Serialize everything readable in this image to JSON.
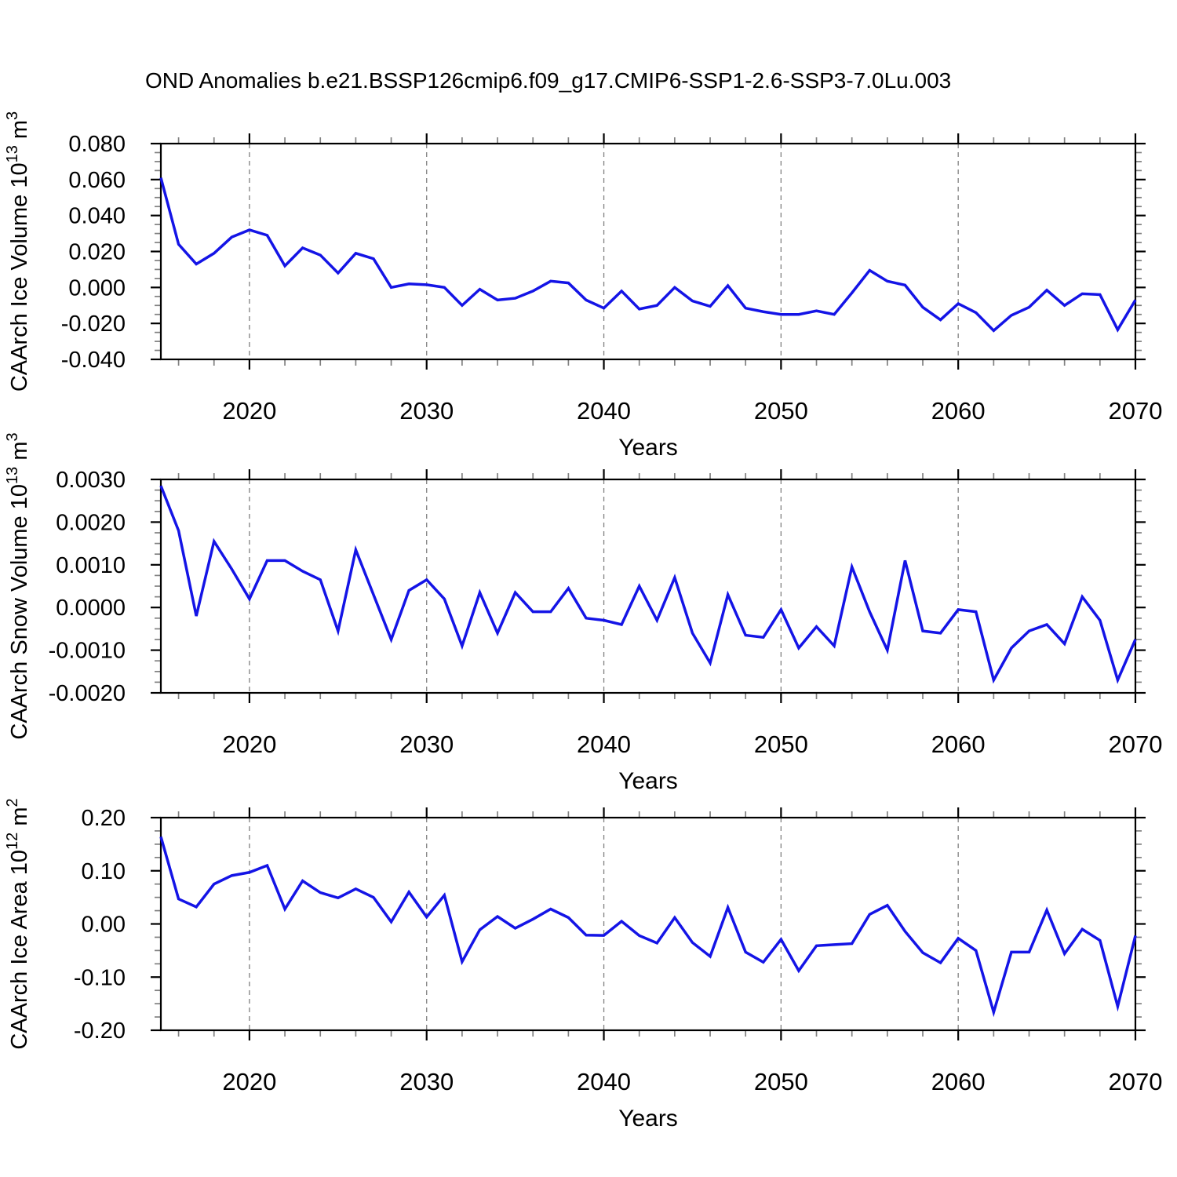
{
  "title": "OND Anomalies b.e21.BSSP126cmip6.f09_g17.CMIP6-SSP1-2.6-SSP3-7.0Lu.003",
  "colors": {
    "line": "#1414e6",
    "grid": "#808080",
    "frame": "#000000",
    "minor_tick": "#808080",
    "text": "#000000"
  },
  "years": [
    2015,
    2016,
    2017,
    2018,
    2019,
    2020,
    2021,
    2022,
    2023,
    2024,
    2025,
    2026,
    2027,
    2028,
    2029,
    2030,
    2031,
    2032,
    2033,
    2034,
    2035,
    2036,
    2037,
    2038,
    2039,
    2040,
    2041,
    2042,
    2043,
    2044,
    2045,
    2046,
    2047,
    2048,
    2049,
    2050,
    2051,
    2052,
    2053,
    2054,
    2055,
    2056,
    2057,
    2058,
    2059,
    2060,
    2061,
    2062,
    2063,
    2064,
    2065,
    2066,
    2067,
    2068,
    2069,
    2070
  ],
  "chart_data": [
    {
      "id": "ice-volume",
      "type": "line",
      "ylabel": {
        "base": "CAArch Ice Volume 10",
        "exp": "13",
        "unit": "m",
        "unit_exp": "3"
      },
      "xlabel": "Years",
      "xlim": [
        2015,
        2070
      ],
      "xticks": [
        2020,
        2030,
        2040,
        2050,
        2060,
        2070
      ],
      "x_minor_step": 2,
      "grid_x": [
        2020,
        2030,
        2040,
        2050,
        2060
      ],
      "ylim": [
        -0.04,
        0.08
      ],
      "ytick_step": 0.02,
      "y_minor_step": 0.005,
      "ytick_decimals": 3,
      "legend_position": "none",
      "grid": "x-dashed",
      "values": [
        0.061,
        0.024,
        0.013,
        0.019,
        0.028,
        0.032,
        0.029,
        0.012,
        0.022,
        0.018,
        0.008,
        0.019,
        0.016,
        0.0,
        0.002,
        0.0015,
        0.0,
        -0.01,
        -0.001,
        -0.007,
        -0.006,
        -0.002,
        0.0035,
        0.0025,
        -0.007,
        -0.0115,
        -0.002,
        -0.012,
        -0.01,
        0.0,
        -0.0075,
        -0.0105,
        0.001,
        -0.0115,
        -0.0135,
        -0.015,
        -0.015,
        -0.013,
        -0.015,
        -0.003,
        0.0095,
        0.0035,
        0.0013,
        -0.011,
        -0.018,
        -0.009,
        -0.014,
        -0.024,
        -0.0155,
        -0.011,
        -0.0015,
        -0.01,
        -0.0035,
        -0.004,
        -0.0235,
        -0.007
      ]
    },
    {
      "id": "snow-volume",
      "type": "line",
      "ylabel": {
        "base": "CAArch Snow Volume 10",
        "exp": "13",
        "unit": "m",
        "unit_exp": "3"
      },
      "xlabel": "Years",
      "xlim": [
        2015,
        2070
      ],
      "xticks": [
        2020,
        2030,
        2040,
        2050,
        2060,
        2070
      ],
      "x_minor_step": 2,
      "grid_x": [
        2020,
        2030,
        2040,
        2050,
        2060
      ],
      "ylim": [
        -0.002,
        0.003
      ],
      "ytick_step": 0.001,
      "y_minor_step": 0.00025,
      "ytick_decimals": 4,
      "legend_position": "none",
      "grid": "x-dashed",
      "values": [
        0.00285,
        0.0018,
        -0.0002,
        0.00155,
        0.0009,
        0.0002,
        0.0011,
        0.0011,
        0.00085,
        0.00065,
        -0.00055,
        0.00135,
        0.0003,
        -0.00075,
        0.0004,
        0.00065,
        0.0002,
        -0.0009,
        0.00035,
        -0.0006,
        0.00035,
        -0.0001,
        -0.0001,
        0.00045,
        -0.00025,
        -0.0003,
        -0.0004,
        0.0005,
        -0.0003,
        0.0007,
        -0.0006,
        -0.0013,
        0.0003,
        -0.00065,
        -0.0007,
        -5e-05,
        -0.00095,
        -0.00045,
        -0.0009,
        0.00095,
        -0.0001,
        -0.001,
        0.0011,
        -0.00055,
        -0.0006,
        -5e-05,
        -0.0001,
        -0.0017,
        -0.00095,
        -0.00055,
        -0.0004,
        -0.00085,
        0.00025,
        -0.0003,
        -0.0017,
        -0.00075
      ]
    },
    {
      "id": "ice-area",
      "type": "line",
      "ylabel": {
        "base": "CAArch Ice Area 10",
        "exp": "12",
        "unit": "m",
        "unit_exp": "2"
      },
      "xlabel": "Years",
      "xlim": [
        2015,
        2070
      ],
      "xticks": [
        2020,
        2030,
        2040,
        2050,
        2060,
        2070
      ],
      "x_minor_step": 2,
      "grid_x": [
        2020,
        2030,
        2040,
        2050,
        2060
      ],
      "ylim": [
        -0.2,
        0.2
      ],
      "ytick_step": 0.1,
      "y_minor_step": 0.025,
      "ytick_decimals": 2,
      "legend_position": "none",
      "grid": "x-dashed",
      "values": [
        0.164,
        0.047,
        0.032,
        0.075,
        0.091,
        0.097,
        0.11,
        0.028,
        0.081,
        0.059,
        0.049,
        0.066,
        0.05,
        0.004,
        0.06,
        0.013,
        0.054,
        -0.071,
        -0.011,
        0.014,
        -0.008,
        0.009,
        0.028,
        0.012,
        -0.021,
        -0.0215,
        0.005,
        -0.022,
        -0.036,
        0.012,
        -0.035,
        -0.061,
        0.031,
        -0.053,
        -0.072,
        -0.029,
        -0.088,
        -0.041,
        -0.039,
        -0.037,
        0.018,
        0.035,
        -0.014,
        -0.054,
        -0.073,
        -0.027,
        -0.05,
        -0.166,
        -0.053,
        -0.053,
        0.026,
        -0.056,
        -0.01,
        -0.031,
        -0.155,
        -0.022
      ]
    }
  ]
}
